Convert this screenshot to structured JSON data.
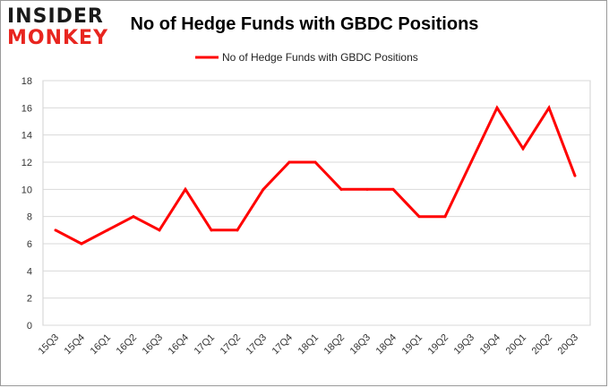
{
  "logo": {
    "line1": "INSIDER",
    "line2": "MONKEY"
  },
  "chart_data": {
    "type": "line",
    "title": "No of Hedge Funds with GBDC Positions",
    "xlabel": "",
    "ylabel": "",
    "categories": [
      "15Q3",
      "15Q4",
      "16Q1",
      "16Q2",
      "16Q3",
      "16Q4",
      "17Q1",
      "17Q2",
      "17Q3",
      "17Q4",
      "18Q1",
      "18Q2",
      "18Q3",
      "18Q4",
      "19Q1",
      "19Q2",
      "19Q3",
      "19Q4",
      "20Q1",
      "20Q2",
      "20Q3"
    ],
    "series": [
      {
        "name": "No of Hedge Funds with GBDC Positions",
        "color": "#ff0000",
        "values": [
          7,
          6,
          7,
          8,
          7,
          10,
          7,
          7,
          10,
          12,
          12,
          10,
          10,
          10,
          8,
          8,
          12,
          16,
          13,
          16,
          11
        ]
      }
    ],
    "ylim": [
      0,
      18
    ],
    "yticks": [
      0,
      2,
      4,
      6,
      8,
      10,
      12,
      14,
      16,
      18
    ],
    "grid": true,
    "legend": "top-center"
  }
}
